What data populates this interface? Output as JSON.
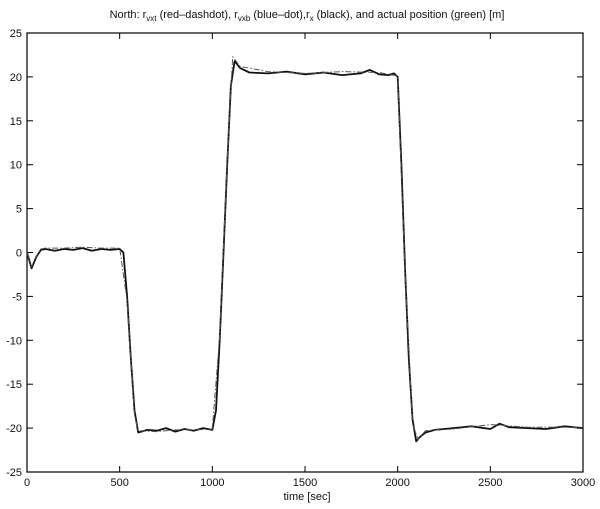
{
  "chart_data": {
    "type": "line",
    "title": {
      "prefix": "North: r",
      "sub1": "vxt",
      "part1": " (red–dashdot), r",
      "sub2": "vxb",
      "part2": " (blue–dot),r",
      "sub3": "x",
      "part3": " (black), and actual position (green) [m]"
    },
    "xlabel": "time [sec]",
    "ylabel": "",
    "xlim": [
      0,
      3000
    ],
    "ylim": [
      -25,
      25
    ],
    "xticks": [
      0,
      500,
      1000,
      1500,
      2000,
      2500,
      3000
    ],
    "yticks": [
      -25,
      -20,
      -15,
      -10,
      -5,
      0,
      5,
      10,
      15,
      20,
      25
    ],
    "grid": false,
    "legend": "none",
    "colors": {
      "axis": "#000000",
      "main_line": "#111111",
      "secondary_line": "#555555"
    },
    "series": [
      {
        "name": "r_x",
        "style": "solid",
        "x": [
          0,
          25,
          50,
          75,
          100,
          150,
          200,
          250,
          300,
          350,
          400,
          450,
          500,
          520,
          540,
          560,
          580,
          600,
          650,
          700,
          750,
          800,
          850,
          900,
          950,
          1000,
          1020,
          1040,
          1060,
          1080,
          1100,
          1120,
          1150,
          1200,
          1300,
          1400,
          1500,
          1600,
          1700,
          1800,
          1850,
          1900,
          1950,
          1980,
          2000,
          2020,
          2040,
          2060,
          2080,
          2100,
          2120,
          2150,
          2200,
          2300,
          2400,
          2500,
          2550,
          2600,
          2700,
          2800,
          2900,
          3000
        ],
        "y": [
          0.0,
          -1.8,
          -0.5,
          0.3,
          0.4,
          0.2,
          0.4,
          0.3,
          0.5,
          0.2,
          0.4,
          0.3,
          0.4,
          0.0,
          -5.0,
          -12.0,
          -18.0,
          -20.5,
          -20.2,
          -20.3,
          -20.0,
          -20.4,
          -20.1,
          -20.3,
          -20.0,
          -20.2,
          -18.0,
          -10.0,
          0.0,
          10.0,
          19.0,
          21.8,
          21.0,
          20.5,
          20.4,
          20.6,
          20.3,
          20.5,
          20.2,
          20.4,
          20.8,
          20.3,
          20.2,
          20.4,
          20.0,
          10.0,
          -2.0,
          -12.0,
          -19.0,
          -21.5,
          -21.0,
          -20.5,
          -20.2,
          -20.0,
          -19.8,
          -20.1,
          -19.5,
          -19.9,
          -20.0,
          -20.1,
          -19.8,
          -20.0
        ]
      },
      {
        "name": "r_vxt",
        "style": "dashdot",
        "x": [
          0,
          25,
          50,
          75,
          100,
          200,
          300,
          400,
          500,
          540,
          580,
          600,
          700,
          800,
          900,
          1000,
          1040,
          1080,
          1110,
          1150,
          1300,
          1500,
          1700,
          1900,
          2000,
          2040,
          2080,
          2110,
          2150,
          2300,
          2500,
          2700,
          2900,
          3000
        ],
        "y": [
          0.0,
          -1.6,
          -0.4,
          0.4,
          0.5,
          0.5,
          0.6,
          0.5,
          0.5,
          -5.5,
          -18.5,
          -20.3,
          -20.4,
          -20.2,
          -20.2,
          -20.1,
          -9.5,
          10.5,
          22.3,
          21.2,
          20.6,
          20.4,
          20.6,
          20.5,
          20.1,
          -2.5,
          -19.5,
          -21.3,
          -20.3,
          -20.1,
          -19.6,
          -19.9,
          -19.9,
          -19.9
        ]
      }
    ]
  }
}
